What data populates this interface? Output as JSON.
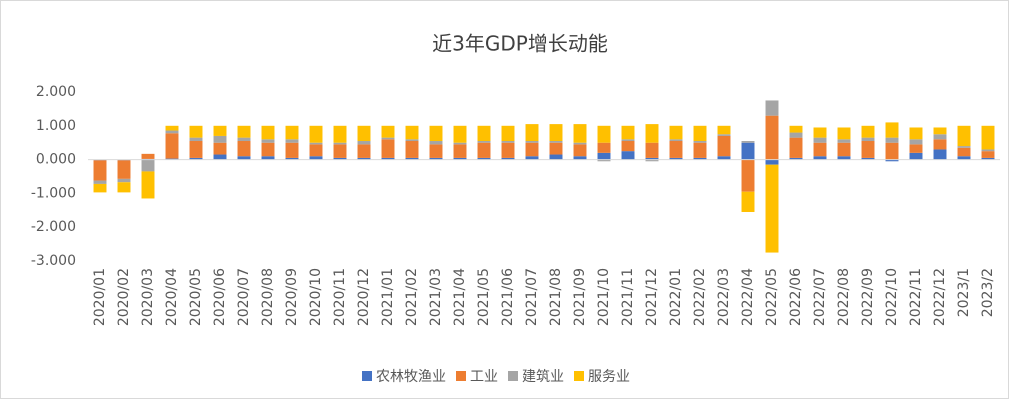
{
  "chart_data": {
    "type": "bar",
    "stacked": true,
    "title": "近3年GDP增长动能",
    "categories": [
      "2020/01",
      "2020/02",
      "2020/03",
      "2020/04",
      "2020/05",
      "2020/06",
      "2020/07",
      "2020/08",
      "2020/09",
      "2020/10",
      "2020/11",
      "2020/12",
      "2021/01",
      "2021/02",
      "2021/03",
      "2021/04",
      "2021/05",
      "2021/06",
      "2021/07",
      "2021/08",
      "2021/09",
      "2021/10",
      "2021/11",
      "2021/12",
      "2022/01",
      "2022/02",
      "2022/03",
      "2022/04",
      "2022/05",
      "2022/06",
      "2022/07",
      "2022/08",
      "2022/09",
      "2022/10",
      "2022/11",
      "2022/12",
      "2023/1",
      "2023/2"
    ],
    "series": [
      {
        "name": "农林牧渔业",
        "color": "#4472c4",
        "values": [
          -0.02,
          -0.02,
          0.02,
          0.03,
          0.05,
          0.15,
          0.1,
          0.1,
          0.05,
          0.1,
          0.05,
          0.05,
          0.05,
          0.05,
          0.05,
          0.05,
          0.05,
          0.05,
          0.1,
          0.15,
          0.1,
          0.2,
          0.25,
          0.05,
          0.05,
          0.05,
          0.1,
          0.5,
          -0.15,
          0.05,
          0.1,
          0.1,
          0.05,
          -0.05,
          0.2,
          0.3,
          0.1,
          0.05
        ]
      },
      {
        "name": "工业",
        "color": "#ed7d31",
        "values": [
          -0.6,
          -0.55,
          0.15,
          0.75,
          0.5,
          0.35,
          0.45,
          0.4,
          0.45,
          0.35,
          0.4,
          0.4,
          0.55,
          0.5,
          0.4,
          0.4,
          0.45,
          0.45,
          0.4,
          0.35,
          0.35,
          0.3,
          0.3,
          0.45,
          0.5,
          0.45,
          0.6,
          -0.95,
          1.3,
          0.6,
          0.4,
          0.4,
          0.5,
          0.5,
          0.25,
          0.3,
          0.25,
          0.2
        ]
      },
      {
        "name": "建筑业",
        "color": "#a5a5a5",
        "values": [
          -0.1,
          -0.1,
          -0.35,
          0.08,
          0.1,
          0.2,
          0.1,
          0.1,
          0.1,
          0.05,
          0.05,
          0.1,
          0.05,
          0.05,
          0.1,
          0.05,
          0.05,
          0.05,
          0.05,
          0.05,
          0.05,
          -0.05,
          0.05,
          -0.05,
          0.05,
          0.05,
          0.05,
          0.05,
          0.45,
          0.15,
          0.15,
          0.1,
          0.1,
          0.15,
          0.15,
          0.15,
          0.05,
          0.05
        ]
      },
      {
        "name": "服务业",
        "color": "#ffc000",
        "values": [
          -0.25,
          -0.3,
          -0.8,
          0.14,
          0.35,
          0.3,
          0.35,
          0.4,
          0.4,
          0.5,
          0.5,
          0.45,
          0.35,
          0.4,
          0.45,
          0.5,
          0.45,
          0.45,
          0.5,
          0.5,
          0.55,
          0.5,
          0.4,
          0.55,
          0.4,
          0.45,
          0.25,
          -0.6,
          -2.6,
          0.2,
          0.3,
          0.35,
          0.35,
          0.45,
          0.35,
          0.2,
          0.6,
          0.7
        ]
      }
    ],
    "ylim": [
      -3,
      2
    ],
    "yticks": [
      {
        "value": -3,
        "label": "-3.000"
      },
      {
        "value": -2,
        "label": "-2.000"
      },
      {
        "value": -1,
        "label": "-1.000"
      },
      {
        "value": 0,
        "label": "0.000"
      },
      {
        "value": 1,
        "label": "1.000"
      },
      {
        "value": 2,
        "label": "2.000"
      }
    ],
    "grid": false,
    "legend": "bottom"
  }
}
